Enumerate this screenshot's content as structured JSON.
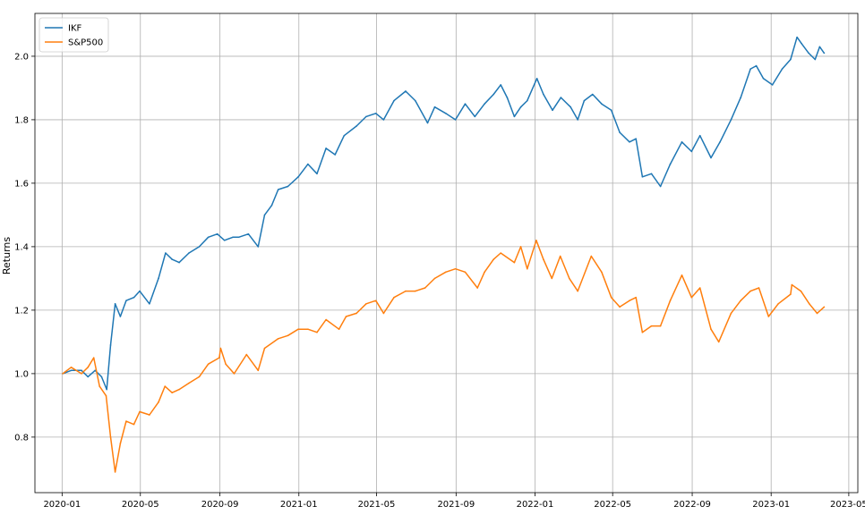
{
  "chart_data": {
    "type": "line",
    "title": "",
    "xlabel": "",
    "ylabel": "Returns",
    "grid": true,
    "legend_position": "top-left",
    "xlim": [
      "2019-11-20",
      "2023-05-15"
    ],
    "ylim": [
      0.625,
      2.135
    ],
    "x_ticks": [
      "2020-01",
      "2020-05",
      "2020-09",
      "2021-01",
      "2021-05",
      "2021-09",
      "2022-01",
      "2022-05",
      "2022-09",
      "2023-01",
      "2023-05"
    ],
    "y_ticks": [
      0.8,
      1.0,
      1.2,
      1.4,
      1.6,
      1.8,
      2.0
    ],
    "series": [
      {
        "name": "IKF",
        "color": "#1f77b4",
        "points": [
          [
            "2020-01-02",
            1.0
          ],
          [
            "2020-01-15",
            1.01
          ],
          [
            "2020-01-31",
            1.01
          ],
          [
            "2020-02-10",
            0.99
          ],
          [
            "2020-02-21",
            1.01
          ],
          [
            "2020-03-02",
            0.99
          ],
          [
            "2020-03-10",
            0.95
          ],
          [
            "2020-03-16",
            1.09
          ],
          [
            "2020-03-23",
            1.22
          ],
          [
            "2020-03-31",
            1.18
          ],
          [
            "2020-04-09",
            1.23
          ],
          [
            "2020-04-21",
            1.24
          ],
          [
            "2020-04-30",
            1.26
          ],
          [
            "2020-05-15",
            1.22
          ],
          [
            "2020-05-29",
            1.3
          ],
          [
            "2020-06-09",
            1.38
          ],
          [
            "2020-06-19",
            1.36
          ],
          [
            "2020-06-30",
            1.35
          ],
          [
            "2020-07-15",
            1.38
          ],
          [
            "2020-07-31",
            1.4
          ],
          [
            "2020-08-14",
            1.43
          ],
          [
            "2020-08-28",
            1.44
          ],
          [
            "2020-09-08",
            1.42
          ],
          [
            "2020-09-21",
            1.43
          ],
          [
            "2020-09-30",
            1.43
          ],
          [
            "2020-10-15",
            1.44
          ],
          [
            "2020-10-30",
            1.4
          ],
          [
            "2020-11-09",
            1.5
          ],
          [
            "2020-11-20",
            1.53
          ],
          [
            "2020-11-30",
            1.58
          ],
          [
            "2020-12-15",
            1.59
          ],
          [
            "2020-12-31",
            1.62
          ],
          [
            "2021-01-15",
            1.66
          ],
          [
            "2021-01-29",
            1.63
          ],
          [
            "2021-02-12",
            1.71
          ],
          [
            "2021-02-26",
            1.69
          ],
          [
            "2021-03-12",
            1.75
          ],
          [
            "2021-03-31",
            1.78
          ],
          [
            "2021-04-15",
            1.81
          ],
          [
            "2021-04-30",
            1.82
          ],
          [
            "2021-05-12",
            1.8
          ],
          [
            "2021-05-28",
            1.86
          ],
          [
            "2021-06-15",
            1.89
          ],
          [
            "2021-06-30",
            1.86
          ],
          [
            "2021-07-19",
            1.79
          ],
          [
            "2021-07-30",
            1.84
          ],
          [
            "2021-08-16",
            1.82
          ],
          [
            "2021-08-31",
            1.8
          ],
          [
            "2021-09-15",
            1.85
          ],
          [
            "2021-09-30",
            1.81
          ],
          [
            "2021-10-15",
            1.85
          ],
          [
            "2021-10-29",
            1.88
          ],
          [
            "2021-11-09",
            1.91
          ],
          [
            "2021-11-19",
            1.87
          ],
          [
            "2021-11-30",
            1.81
          ],
          [
            "2021-12-10",
            1.84
          ],
          [
            "2021-12-20",
            1.86
          ],
          [
            "2022-01-04",
            1.93
          ],
          [
            "2022-01-14",
            1.88
          ],
          [
            "2022-01-28",
            1.83
          ],
          [
            "2022-02-10",
            1.87
          ],
          [
            "2022-02-25",
            1.84
          ],
          [
            "2022-03-08",
            1.8
          ],
          [
            "2022-03-18",
            1.86
          ],
          [
            "2022-03-31",
            1.88
          ],
          [
            "2022-04-14",
            1.85
          ],
          [
            "2022-04-29",
            1.83
          ],
          [
            "2022-05-12",
            1.76
          ],
          [
            "2022-05-27",
            1.73
          ],
          [
            "2022-06-06",
            1.74
          ],
          [
            "2022-06-16",
            1.62
          ],
          [
            "2022-06-30",
            1.63
          ],
          [
            "2022-07-14",
            1.59
          ],
          [
            "2022-07-29",
            1.66
          ],
          [
            "2022-08-16",
            1.73
          ],
          [
            "2022-08-31",
            1.7
          ],
          [
            "2022-09-13",
            1.75
          ],
          [
            "2022-09-30",
            1.68
          ],
          [
            "2022-10-14",
            1.73
          ],
          [
            "2022-10-31",
            1.8
          ],
          [
            "2022-11-15",
            1.87
          ],
          [
            "2022-11-30",
            1.96
          ],
          [
            "2022-12-09",
            1.97
          ],
          [
            "2022-12-20",
            1.93
          ],
          [
            "2023-01-03",
            1.91
          ],
          [
            "2023-01-18",
            1.96
          ],
          [
            "2023-01-31",
            1.99
          ],
          [
            "2023-02-10",
            2.06
          ],
          [
            "2023-02-17",
            2.04
          ],
          [
            "2023-02-28",
            2.01
          ],
          [
            "2023-03-10",
            1.99
          ],
          [
            "2023-03-17",
            2.03
          ],
          [
            "2023-03-24",
            2.01
          ]
        ]
      },
      {
        "name": "S&P500",
        "color": "#ff7f0e",
        "points": [
          [
            "2020-01-02",
            1.0
          ],
          [
            "2020-01-15",
            1.02
          ],
          [
            "2020-01-31",
            1.0
          ],
          [
            "2020-02-10",
            1.02
          ],
          [
            "2020-02-19",
            1.05
          ],
          [
            "2020-02-28",
            0.96
          ],
          [
            "2020-03-09",
            0.93
          ],
          [
            "2020-03-16",
            0.8
          ],
          [
            "2020-03-23",
            0.69
          ],
          [
            "2020-03-31",
            0.78
          ],
          [
            "2020-04-09",
            0.85
          ],
          [
            "2020-04-21",
            0.84
          ],
          [
            "2020-04-30",
            0.88
          ],
          [
            "2020-05-15",
            0.87
          ],
          [
            "2020-05-29",
            0.91
          ],
          [
            "2020-06-08",
            0.96
          ],
          [
            "2020-06-19",
            0.94
          ],
          [
            "2020-06-30",
            0.95
          ],
          [
            "2020-07-15",
            0.97
          ],
          [
            "2020-07-31",
            0.99
          ],
          [
            "2020-08-14",
            1.03
          ],
          [
            "2020-08-31",
            1.05
          ],
          [
            "2020-09-02",
            1.08
          ],
          [
            "2020-09-10",
            1.03
          ],
          [
            "2020-09-23",
            1.0
          ],
          [
            "2020-10-12",
            1.06
          ],
          [
            "2020-10-30",
            1.01
          ],
          [
            "2020-11-09",
            1.08
          ],
          [
            "2020-11-30",
            1.11
          ],
          [
            "2020-12-15",
            1.12
          ],
          [
            "2020-12-31",
            1.14
          ],
          [
            "2021-01-15",
            1.14
          ],
          [
            "2021-01-29",
            1.13
          ],
          [
            "2021-02-12",
            1.17
          ],
          [
            "2021-03-04",
            1.14
          ],
          [
            "2021-03-15",
            1.18
          ],
          [
            "2021-03-31",
            1.19
          ],
          [
            "2021-04-15",
            1.22
          ],
          [
            "2021-04-30",
            1.23
          ],
          [
            "2021-05-12",
            1.19
          ],
          [
            "2021-05-28",
            1.24
          ],
          [
            "2021-06-15",
            1.26
          ],
          [
            "2021-06-30",
            1.26
          ],
          [
            "2021-07-15",
            1.27
          ],
          [
            "2021-07-30",
            1.3
          ],
          [
            "2021-08-16",
            1.32
          ],
          [
            "2021-08-31",
            1.33
          ],
          [
            "2021-09-15",
            1.32
          ],
          [
            "2021-10-04",
            1.27
          ],
          [
            "2021-10-15",
            1.32
          ],
          [
            "2021-10-29",
            1.36
          ],
          [
            "2021-11-09",
            1.38
          ],
          [
            "2021-11-30",
            1.35
          ],
          [
            "2021-12-10",
            1.4
          ],
          [
            "2021-12-20",
            1.33
          ],
          [
            "2022-01-03",
            1.42
          ],
          [
            "2022-01-14",
            1.36
          ],
          [
            "2022-01-27",
            1.3
          ],
          [
            "2022-02-09",
            1.37
          ],
          [
            "2022-02-23",
            1.3
          ],
          [
            "2022-03-08",
            1.26
          ],
          [
            "2022-03-29",
            1.37
          ],
          [
            "2022-04-14",
            1.32
          ],
          [
            "2022-04-29",
            1.24
          ],
          [
            "2022-05-12",
            1.21
          ],
          [
            "2022-05-27",
            1.23
          ],
          [
            "2022-06-06",
            1.24
          ],
          [
            "2022-06-16",
            1.13
          ],
          [
            "2022-06-30",
            1.15
          ],
          [
            "2022-07-14",
            1.15
          ],
          [
            "2022-07-29",
            1.23
          ],
          [
            "2022-08-16",
            1.31
          ],
          [
            "2022-08-31",
            1.24
          ],
          [
            "2022-09-13",
            1.27
          ],
          [
            "2022-09-30",
            1.14
          ],
          [
            "2022-10-12",
            1.1
          ],
          [
            "2022-10-31",
            1.19
          ],
          [
            "2022-11-15",
            1.23
          ],
          [
            "2022-11-30",
            1.26
          ],
          [
            "2022-12-13",
            1.27
          ],
          [
            "2022-12-28",
            1.18
          ],
          [
            "2023-01-12",
            1.22
          ],
          [
            "2023-01-31",
            1.25
          ],
          [
            "2023-02-02",
            1.28
          ],
          [
            "2023-02-16",
            1.26
          ],
          [
            "2023-03-01",
            1.22
          ],
          [
            "2023-03-13",
            1.19
          ],
          [
            "2023-03-24",
            1.21
          ]
        ]
      }
    ]
  }
}
